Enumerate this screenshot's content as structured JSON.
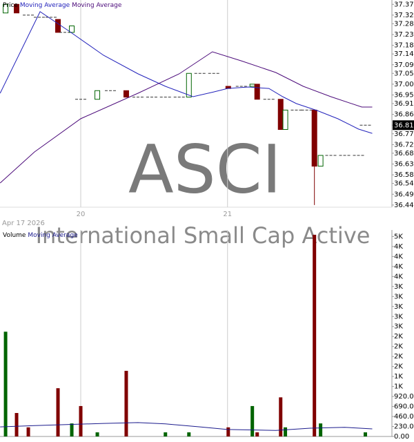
{
  "chart_data": [
    {
      "type": "candlestick",
      "watermark": "ASCI",
      "subtitle": "International Small Cap Active",
      "date": "Apr 17 2026",
      "name": "Price",
      "up_color": "#006400",
      "down_color": "#800000",
      "flat_color": "#333333",
      "x": [
        19.488,
        19.563,
        19.643,
        19.718,
        19.798,
        19.845,
        19.892,
        19.939,
        20.0,
        20.113,
        20.202,
        20.31,
        20.39,
        20.484,
        20.577,
        20.671,
        20.737,
        20.812,
        20.906,
        21.005,
        21.094,
        21.169,
        21.202,
        21.282,
        21.362,
        21.394,
        21.469,
        21.54,
        21.592,
        21.634,
        21.704,
        21.798,
        21.892,
        21.939
      ],
      "open": [
        37.33,
        37.37,
        37.32,
        37.31,
        37.31,
        37.3,
        37.24,
        37.24,
        36.93,
        36.93,
        36.97,
        36.97,
        36.94,
        36.94,
        36.94,
        36.94,
        36.94,
        37.05,
        37.05,
        36.99,
        36.99,
        36.99,
        37.0,
        36.93,
        36.93,
        36.79,
        36.88,
        36.88,
        36.88,
        36.62,
        36.67,
        36.67,
        36.67,
        36.81
      ],
      "high": [
        37.37,
        37.37,
        37.32,
        37.31,
        37.31,
        37.3,
        37.24,
        37.27,
        36.93,
        36.97,
        36.97,
        36.97,
        36.94,
        36.94,
        36.94,
        36.94,
        37.05,
        37.05,
        37.05,
        36.99,
        36.99,
        37.0,
        37.0,
        36.93,
        36.93,
        36.88,
        36.88,
        36.88,
        36.88,
        36.67,
        36.67,
        36.67,
        36.67,
        36.81
      ],
      "low": [
        37.33,
        37.33,
        37.32,
        37.31,
        37.31,
        37.24,
        37.24,
        37.24,
        36.93,
        36.93,
        36.97,
        36.94,
        36.94,
        36.94,
        36.94,
        36.94,
        36.94,
        37.05,
        37.05,
        36.98,
        36.99,
        36.99,
        36.93,
        36.93,
        36.79,
        36.79,
        36.88,
        36.88,
        36.44,
        36.62,
        36.67,
        36.67,
        36.67,
        36.81
      ],
      "close": [
        37.37,
        37.33,
        37.32,
        37.31,
        37.31,
        37.24,
        37.24,
        37.27,
        36.93,
        36.97,
        36.97,
        36.94,
        36.94,
        36.94,
        36.94,
        36.94,
        37.05,
        37.05,
        37.05,
        36.98,
        36.99,
        37.0,
        36.93,
        36.93,
        36.79,
        36.88,
        36.88,
        36.88,
        36.62,
        36.67,
        36.67,
        36.67,
        36.67,
        36.81
      ],
      "series": [
        {
          "name": "Moving Average",
          "color": "#2222bb",
          "x": [
            19.451,
            19.723,
            19.92,
            20.155,
            20.39,
            20.577,
            20.765,
            20.906,
            21.0,
            21.141,
            21.282,
            21.376,
            21.469,
            21.61,
            21.751,
            21.892,
            21.986
          ],
          "values": [
            36.958,
            37.336,
            37.246,
            37.134,
            37.048,
            36.99,
            36.942,
            36.964,
            36.98,
            36.987,
            36.98,
            36.942,
            36.91,
            36.878,
            36.84,
            36.792,
            36.772
          ]
        },
        {
          "name": "Moving Average",
          "color": "#4b0a7a",
          "x": [
            19.451,
            19.685,
            20.0,
            20.39,
            20.671,
            20.897,
            21.094,
            21.329,
            21.516,
            21.704,
            21.915,
            21.986
          ],
          "values": [
            36.542,
            36.686,
            36.84,
            36.958,
            37.048,
            37.15,
            37.108,
            37.054,
            36.99,
            36.942,
            36.894,
            36.894
          ]
        }
      ],
      "xlim": [
        19.45,
        22.12
      ],
      "xticks": [
        20,
        21
      ],
      "ylim": [
        36.43,
        37.39
      ],
      "yticks": [
        37.37,
        37.32,
        37.28,
        37.23,
        37.18,
        37.14,
        37.09,
        37.05,
        {
          "value": 37.0,
          "label": "37.00"
        },
        36.95,
        36.91,
        36.86,
        36.81,
        36.77,
        36.72,
        36.68,
        36.63,
        36.58,
        36.54,
        36.49,
        36.44
      ]
    },
    {
      "type": "bar",
      "name": "Volume",
      "x": [
        19.488,
        19.563,
        19.643,
        19.718,
        19.798,
        19.845,
        19.892,
        19.939,
        20.0,
        20.113,
        20.202,
        20.31,
        20.39,
        20.484,
        20.577,
        20.671,
        20.737,
        20.812,
        20.906,
        21.005,
        21.094,
        21.169,
        21.202,
        21.282,
        21.362,
        21.394,
        21.469,
        21.54,
        21.592,
        21.634,
        21.704,
        21.798,
        21.892,
        21.939
      ],
      "values": [
        2410,
        540,
        210,
        null,
        null,
        1110,
        null,
        300,
        700,
        95,
        null,
        1510,
        null,
        null,
        95,
        null,
        95,
        null,
        null,
        210,
        null,
        700,
        95,
        null,
        900,
        210,
        null,
        null,
        4640,
        300,
        null,
        null,
        null,
        95
      ],
      "colors": [
        "#006400",
        "#800000",
        "#800000",
        null,
        null,
        "#800000",
        null,
        "#006400",
        "#800000",
        "#006400",
        null,
        "#800000",
        null,
        null,
        "#006400",
        null,
        "#006400",
        null,
        null,
        "#800000",
        null,
        "#006400",
        "#800000",
        null,
        "#800000",
        "#006400",
        null,
        null,
        "#800000",
        "#006400",
        null,
        null,
        null,
        "#006400"
      ],
      "series": [
        {
          "name": "Moving Average",
          "color": "#1a1a8c",
          "x": [
            19.451,
            19.685,
            20.155,
            20.39,
            20.577,
            20.812,
            21.0,
            21.329,
            21.563,
            21.798,
            21.986
          ],
          "values": [
            220,
            250,
            300,
            320,
            290,
            220,
            160,
            140,
            190,
            210,
            175
          ]
        }
      ],
      "xlim": [
        19.45,
        22.12
      ],
      "ylim": [
        0,
        4750
      ],
      "yticks": [
        {
          "value": 4600,
          "label": "5K"
        },
        {
          "value": 4370,
          "label": "4K"
        },
        {
          "value": 4140,
          "label": "4K"
        },
        {
          "value": 3910,
          "label": "4K"
        },
        {
          "value": 3680,
          "label": "4K"
        },
        {
          "value": 3450,
          "label": "3K"
        },
        {
          "value": 3220,
          "label": "3K"
        },
        {
          "value": 2990,
          "label": "3K"
        },
        {
          "value": 2760,
          "label": "3K"
        },
        {
          "value": 2530,
          "label": "3K"
        },
        {
          "value": 2300,
          "label": "2K"
        },
        {
          "value": 2070,
          "label": "2K"
        },
        {
          "value": 1840,
          "label": "2K"
        },
        {
          "value": 1610,
          "label": "2K"
        },
        {
          "value": 1380,
          "label": "1K"
        },
        {
          "value": 1150,
          "label": "1K"
        },
        {
          "value": 920,
          "label": "920.00"
        },
        {
          "value": 690,
          "label": "690.00"
        },
        {
          "value": 460,
          "label": "460.00"
        },
        {
          "value": 230,
          "label": "230.00"
        },
        {
          "value": 0,
          "label": "0.00"
        }
      ]
    }
  ]
}
